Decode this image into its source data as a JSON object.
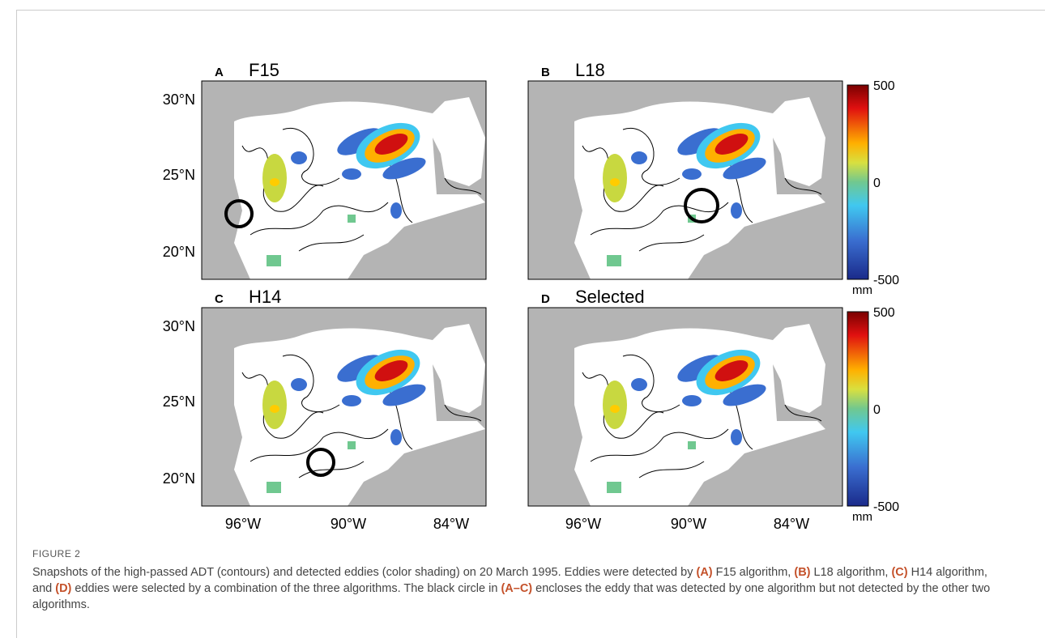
{
  "panels": [
    {
      "letter": "A",
      "title": "F15"
    },
    {
      "letter": "B",
      "title": "L18"
    },
    {
      "letter": "C",
      "title": "H14"
    },
    {
      "letter": "D",
      "title": "Selected"
    }
  ],
  "y_axis_labels": [
    "30°N",
    "25°N",
    "20°N"
  ],
  "x_axis_labels": [
    "96°W",
    "90°W",
    "84°W"
  ],
  "colorbar": {
    "max_label": "500",
    "mid_label": "0",
    "min_label": "-500",
    "unit": "mm"
  },
  "figure_label": "FIGURE 2",
  "caption": [
    {
      "text": "Snapshots of the high-passed ADT (contours) and detected eddies (color shading) on 20 March 1995. Eddies were detected by ",
      "bold": false
    },
    {
      "text": "(A)",
      "bold": true
    },
    {
      "text": " F15 algorithm, ",
      "bold": false
    },
    {
      "text": "(B)",
      "bold": true
    },
    {
      "text": " L18 algorithm, ",
      "bold": false
    },
    {
      "text": "(C)",
      "bold": true
    },
    {
      "text": " H14 algorithm, and ",
      "bold": false
    },
    {
      "text": "(D)",
      "bold": true
    },
    {
      "text": " eddies were selected by a combination of the three algorithms. The black circle in ",
      "bold": false
    },
    {
      "text": "(A–C)",
      "bold": true
    },
    {
      "text": " encloses the eddy that was detected by one algorithm but not detected by the other two algorithms.",
      "bold": false
    }
  ]
}
